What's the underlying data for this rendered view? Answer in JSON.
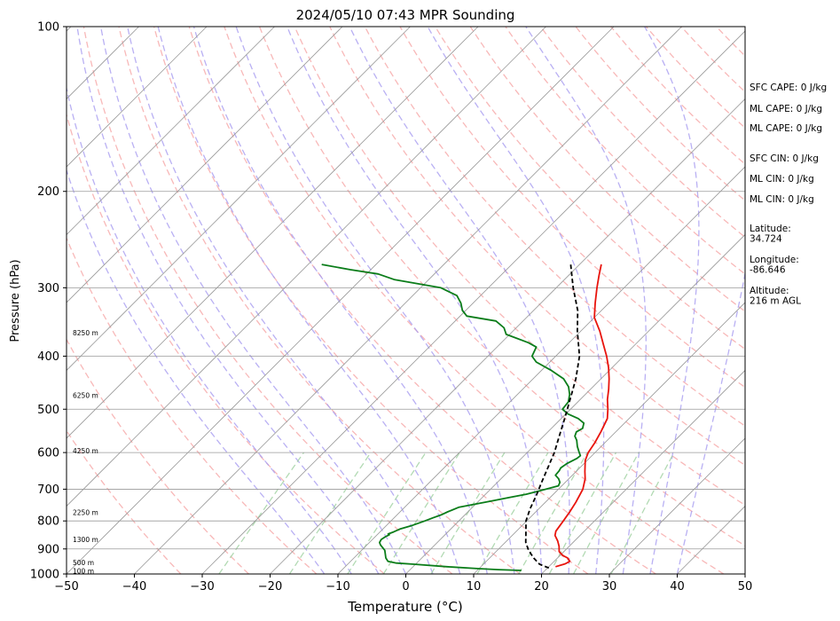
{
  "chart_data": {
    "type": "line",
    "title": "2024/05/10 07:43 MPR Sounding",
    "xlabel": "Temperature (°C)",
    "ylabel": "Pressure (hPa)",
    "x_scale": "linear",
    "y_scale": "log",
    "xlim": [
      -50,
      50
    ],
    "ylim": [
      1000,
      100
    ],
    "x_ticks": [
      -50,
      -40,
      -30,
      -20,
      -10,
      0,
      10,
      20,
      30,
      40,
      50
    ],
    "x_tick_labels": [
      "−50",
      "−40",
      "−30",
      "−20",
      "−10",
      "0",
      "10",
      "20",
      "30",
      "40",
      "50"
    ],
    "y_ticks": [
      1000,
      900,
      800,
      700,
      600,
      500,
      400,
      300,
      200,
      100
    ],
    "y_tick_labels": [
      "1000",
      "900",
      "800",
      "700",
      "600",
      "500",
      "400",
      "300",
      "200",
      "100"
    ],
    "grid": true,
    "skew": "45 degree skew-T",
    "series": [
      {
        "role": "temperature",
        "color": "#e8140d",
        "style": "solid",
        "points": [
          {
            "p": 970,
            "t": 21.0
          },
          {
            "p": 958,
            "t": 22.0
          },
          {
            "p": 948,
            "t": 22.3
          },
          {
            "p": 935,
            "t": 21.5
          },
          {
            "p": 925,
            "t": 20.4
          },
          {
            "p": 910,
            "t": 19.3
          },
          {
            "p": 890,
            "t": 18.5
          },
          {
            "p": 870,
            "t": 17.5
          },
          {
            "p": 850,
            "t": 16.3
          },
          {
            "p": 835,
            "t": 15.8
          },
          {
            "p": 800,
            "t": 15.4
          },
          {
            "p": 770,
            "t": 15.0
          },
          {
            "p": 740,
            "t": 14.5
          },
          {
            "p": 700,
            "t": 13.6
          },
          {
            "p": 670,
            "t": 12.4
          },
          {
            "p": 650,
            "t": 11.3
          },
          {
            "p": 620,
            "t": 9.7
          },
          {
            "p": 600,
            "t": 9.0
          },
          {
            "p": 575,
            "t": 8.5
          },
          {
            "p": 550,
            "t": 7.8
          },
          {
            "p": 520,
            "t": 6.8
          },
          {
            "p": 500,
            "t": 5.5
          },
          {
            "p": 480,
            "t": 4.0
          },
          {
            "p": 460,
            "t": 2.7
          },
          {
            "p": 440,
            "t": 1.2
          },
          {
            "p": 420,
            "t": -0.5
          },
          {
            "p": 400,
            "t": -2.5
          },
          {
            "p": 380,
            "t": -4.8
          },
          {
            "p": 360,
            "t": -7.2
          },
          {
            "p": 340,
            "t": -10.0
          },
          {
            "p": 320,
            "t": -12.0
          },
          {
            "p": 300,
            "t": -14.0
          },
          {
            "p": 285,
            "t": -15.5
          },
          {
            "p": 272,
            "t": -16.8
          }
        ]
      },
      {
        "role": "dewpoint",
        "color": "#0b7d1a",
        "style": "solid",
        "points": [
          {
            "p": 985,
            "t": 16.5
          },
          {
            "p": 982,
            "t": 13.0
          },
          {
            "p": 978,
            "t": 10.0
          },
          {
            "p": 970,
            "t": 5.0
          },
          {
            "p": 960,
            "t": 0.0
          },
          {
            "p": 955,
            "t": -3.0
          },
          {
            "p": 948,
            "t": -4.5
          },
          {
            "p": 935,
            "t": -5.3
          },
          {
            "p": 905,
            "t": -6.6
          },
          {
            "p": 885,
            "t": -8.0
          },
          {
            "p": 876,
            "t": -8.5
          },
          {
            "p": 865,
            "t": -8.7
          },
          {
            "p": 855,
            "t": -8.5
          },
          {
            "p": 848,
            "t": -8.2
          },
          {
            "p": 845,
            "t": -8.5
          },
          {
            "p": 838,
            "t": -8.0
          },
          {
            "p": 828,
            "t": -7.5
          },
          {
            "p": 815,
            "t": -6.2
          },
          {
            "p": 800,
            "t": -5.0
          },
          {
            "p": 790,
            "t": -4.3
          },
          {
            "p": 780,
            "t": -3.5
          },
          {
            "p": 770,
            "t": -3.0
          },
          {
            "p": 755,
            "t": -2.0
          },
          {
            "p": 745,
            "t": 0.0
          },
          {
            "p": 735,
            "t": 2.0
          },
          {
            "p": 725,
            "t": 4.0
          },
          {
            "p": 715,
            "t": 6.0
          },
          {
            "p": 705,
            "t": 7.5
          },
          {
            "p": 690,
            "t": 9.5
          },
          {
            "p": 680,
            "t": 9.2
          },
          {
            "p": 670,
            "t": 8.5
          },
          {
            "p": 660,
            "t": 7.5
          },
          {
            "p": 648,
            "t": 7.4
          },
          {
            "p": 640,
            "t": 7.2
          },
          {
            "p": 628,
            "t": 7.5
          },
          {
            "p": 615,
            "t": 8.2
          },
          {
            "p": 608,
            "t": 8.3
          },
          {
            "p": 598,
            "t": 7.5
          },
          {
            "p": 585,
            "t": 6.5
          },
          {
            "p": 570,
            "t": 5.5
          },
          {
            "p": 560,
            "t": 4.6
          },
          {
            "p": 550,
            "t": 4.2
          },
          {
            "p": 542,
            "t": 4.6
          },
          {
            "p": 538,
            "t": 4.4
          },
          {
            "p": 530,
            "t": 4.0
          },
          {
            "p": 520,
            "t": 2.5
          },
          {
            "p": 510,
            "t": 0.3
          },
          {
            "p": 500,
            "t": -1.2
          },
          {
            "p": 485,
            "t": -1.4
          },
          {
            "p": 470,
            "t": -2.3
          },
          {
            "p": 455,
            "t": -3.6
          },
          {
            "p": 440,
            "t": -5.5
          },
          {
            "p": 425,
            "t": -8.5
          },
          {
            "p": 410,
            "t": -12.0
          },
          {
            "p": 400,
            "t": -13.5
          },
          {
            "p": 385,
            "t": -14.2
          },
          {
            "p": 378,
            "t": -16.0
          },
          {
            "p": 365,
            "t": -20.5
          },
          {
            "p": 355,
            "t": -21.8
          },
          {
            "p": 345,
            "t": -24.0
          },
          {
            "p": 338,
            "t": -29.0
          },
          {
            "p": 330,
            "t": -30.5
          },
          {
            "p": 320,
            "t": -31.8
          },
          {
            "p": 310,
            "t": -33.5
          },
          {
            "p": 300,
            "t": -37.0
          },
          {
            "p": 290,
            "t": -45.0
          },
          {
            "p": 283,
            "t": -48.3
          },
          {
            "p": 278,
            "t": -53.0
          },
          {
            "p": 272,
            "t": -58.0
          }
        ]
      },
      {
        "role": "parcel-profile",
        "color": "#000000",
        "style": "dashed",
        "points": [
          {
            "p": 975,
            "t": 20.2
          },
          {
            "p": 960,
            "t": 18.3
          },
          {
            "p": 935,
            "t": 16.5
          },
          {
            "p": 905,
            "t": 14.6
          },
          {
            "p": 875,
            "t": 13.0
          },
          {
            "p": 845,
            "t": 11.8
          },
          {
            "p": 800,
            "t": 9.9
          },
          {
            "p": 760,
            "t": 8.7
          },
          {
            "p": 720,
            "t": 7.7
          },
          {
            "p": 680,
            "t": 6.5
          },
          {
            "p": 640,
            "t": 5.3
          },
          {
            "p": 600,
            "t": 4.0
          },
          {
            "p": 560,
            "t": 2.3
          },
          {
            "p": 520,
            "t": 0.5
          },
          {
            "p": 480,
            "t": -1.5
          },
          {
            "p": 440,
            "t": -3.7
          },
          {
            "p": 400,
            "t": -6.5
          },
          {
            "p": 360,
            "t": -10.5
          },
          {
            "p": 330,
            "t": -13.5
          },
          {
            "p": 300,
            "t": -17.5
          },
          {
            "p": 285,
            "t": -19.5
          },
          {
            "p": 272,
            "t": -21.3
          }
        ]
      }
    ],
    "height_labels": [
      {
        "label": "100 m",
        "p": 988
      },
      {
        "label": "500 m",
        "p": 955
      },
      {
        "label": "1300 m",
        "p": 866
      },
      {
        "label": "2250 m",
        "p": 773
      },
      {
        "label": "4250 m",
        "p": 596
      },
      {
        "label": "6250 m",
        "p": 472
      },
      {
        "label": "8250 m",
        "p": 363
      }
    ],
    "side_panel": [
      {
        "text": "SFC CAPE: 0 J/kg"
      },
      {
        "text": "ML CAPE: 0 J/kg"
      },
      {
        "text": "ML CAPE: 0 J/kg"
      },
      {
        "text": "SFC CIN: 0 J/kg"
      },
      {
        "text": "ML CIN: 0 J/kg"
      },
      {
        "text": "ML CIN: 0 J/kg"
      },
      {
        "text": "Latitude:",
        "value": "34.724"
      },
      {
        "text": "Longitude:",
        "value": "-86.646"
      },
      {
        "text": "Altitude:",
        "value": "216 m AGL"
      }
    ],
    "colors": {
      "temperature": "#e8140d",
      "dewpoint": "#0b7d1a",
      "parcel": "#000000",
      "dry_adiabat": "#f5a0a0",
      "moist_adiabat": "#a89cf0",
      "mixing_ratio": "#9fd1a0",
      "isotherm": "#9a9a9a",
      "isobar": "#9a9a9a"
    }
  }
}
